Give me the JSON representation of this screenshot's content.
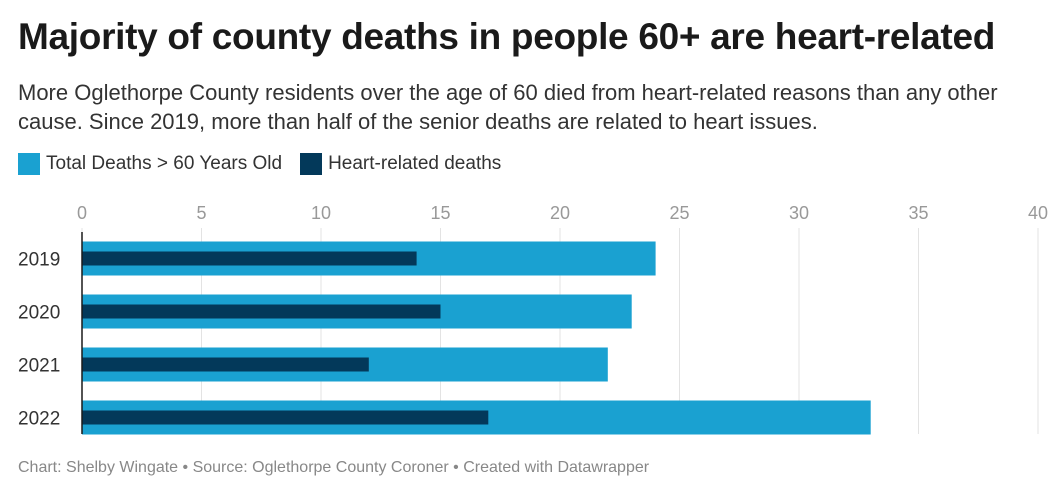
{
  "title": "Majority of county deaths in people 60+ are heart-related",
  "subtitle": "More Oglethorpe County residents over the age of 60 died from heart-related reasons than any other cause. Since 2019, more than half of the senior deaths are related to heart issues.",
  "footer": "Chart: Shelby Wingate • Source: Oglethorpe County Coroner • Created with Datawrapper",
  "colors": {
    "total": "#1aa1d1",
    "heart": "#03395a",
    "grid": "#e3e3e3",
    "axis": "#1a1a1a"
  },
  "chart_data": {
    "type": "bar",
    "orientation": "horizontal",
    "categories": [
      "2019",
      "2020",
      "2021",
      "2022"
    ],
    "series": [
      {
        "name": "Total Deaths > 60 Years Old",
        "values": [
          24,
          23,
          22,
          33
        ]
      },
      {
        "name": "Heart-related deaths",
        "values": [
          14,
          15,
          12,
          17
        ]
      }
    ],
    "xlim": [
      0,
      40
    ],
    "xticks": [
      0,
      5,
      10,
      15,
      20,
      25,
      30,
      35,
      40
    ],
    "legend_position": "top-left",
    "grid": true
  }
}
